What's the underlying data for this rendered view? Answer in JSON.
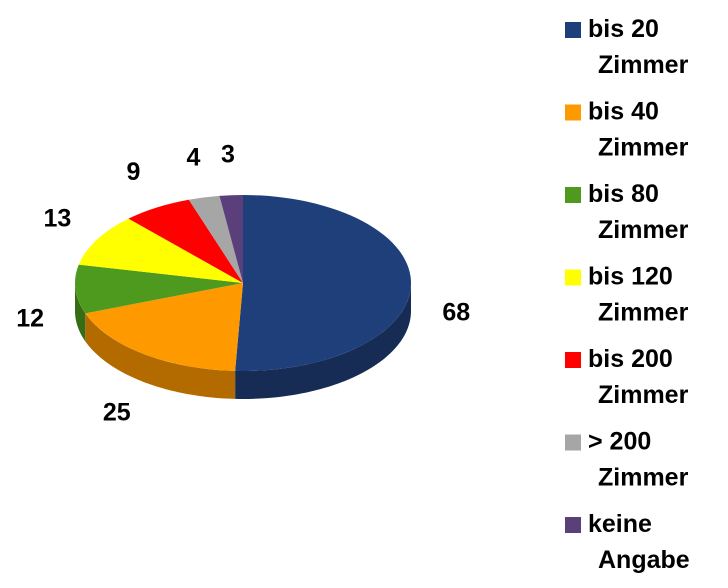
{
  "chart_data": {
    "type": "pie",
    "categories": [
      "bis 20 Zimmer",
      "bis 40 Zimmer",
      "bis 80 Zimmer",
      "bis 120 Zimmer",
      "bis 200 Zimmer",
      "> 200 Zimmer",
      "keine Angabe"
    ],
    "values": [
      68,
      25,
      12,
      13,
      9,
      4,
      3
    ],
    "colors": [
      "#1f3f7a",
      "#ff9900",
      "#4e9a1e",
      "#ffff00",
      "#ff0000",
      "#a6a6a6",
      "#5b3f7a"
    ],
    "legend": "right"
  }
}
